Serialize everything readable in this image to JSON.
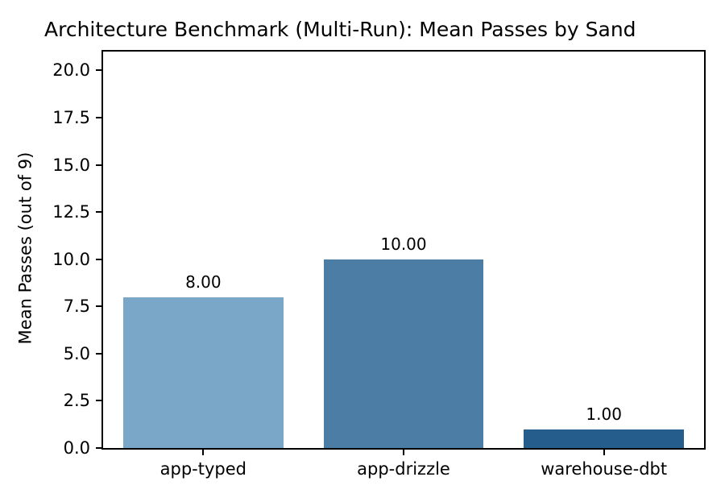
{
  "chart_data": {
    "type": "bar",
    "title": "Architecture Benchmark (Multi-Run): Mean Passes by Sand",
    "ylabel": "Mean Passes (out of 9)",
    "xlabel": "",
    "categories": [
      "app-typed",
      "app-drizzle",
      "warehouse-dbt"
    ],
    "values": [
      8,
      10,
      1
    ],
    "value_labels": [
      "8.00",
      "10.00",
      "1.00"
    ],
    "bar_colors": [
      "#7AA7C7",
      "#4C7EA5",
      "#255E8C"
    ],
    "yticks": [
      0,
      2.5,
      5,
      7.5,
      10,
      12.5,
      15,
      17.5,
      20
    ],
    "ytick_labels": [
      "0.0",
      "2.5",
      "5.0",
      "7.5",
      "10.0",
      "12.5",
      "15.0",
      "17.5",
      "20.0"
    ],
    "ylim": [
      0,
      21
    ],
    "bar_width_fraction": 0.8,
    "grid": false,
    "legend_position": "none",
    "background_color": "#ffffff",
    "axis_color": "#000000"
  }
}
